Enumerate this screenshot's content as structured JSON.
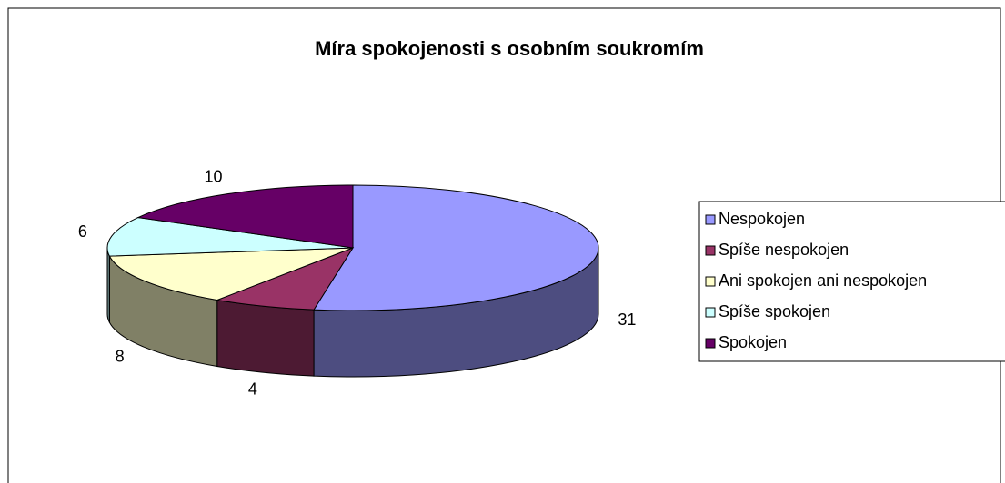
{
  "chart_data": {
    "type": "pie",
    "title": "Míra spokojenosti s osobním soukromím",
    "categories": [
      "Nespokojen",
      "Spíše nespokojen",
      "Ani spokojen ani nespokojen",
      "Spíše spokojen",
      "Spokojen"
    ],
    "values": [
      31,
      4,
      8,
      6,
      10
    ],
    "colors": [
      "#9999ff",
      "#993366",
      "#ffffcc",
      "#ccffff",
      "#660066"
    ],
    "legend": "right"
  }
}
